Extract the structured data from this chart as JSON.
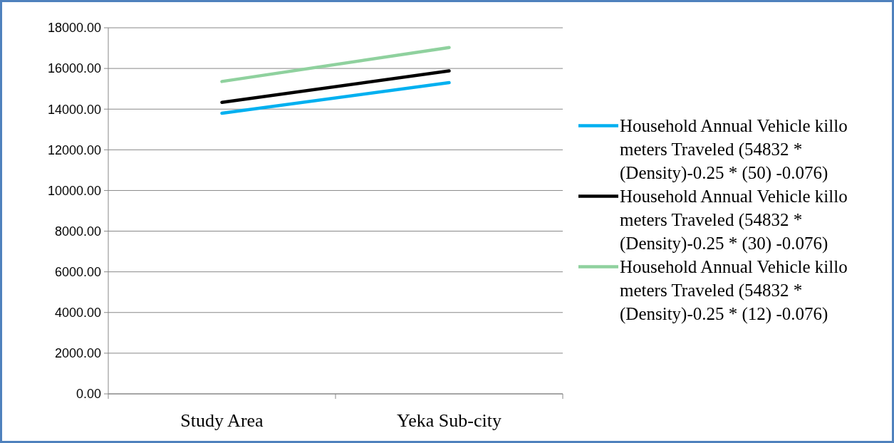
{
  "chart_data": {
    "type": "line",
    "categories": [
      "Study Area",
      "Yeka Sub-city"
    ],
    "series": [
      {
        "name": "Household Annual Vehicle killo meters Traveled (54832 * (Density)-0.25 * (50) -0.076)",
        "color": "#00b0f0",
        "values": [
          13800,
          15300
        ]
      },
      {
        "name": "Household Annual Vehicle killo meters Traveled (54832 * (Density)-0.25 * (30) -0.076)",
        "color": "#000000",
        "values": [
          14330,
          15880
        ]
      },
      {
        "name": "Household Annual Vehicle killo meters Traveled (54832 * (Density)-0.25 * (12) -0.076)",
        "color": "#8fd19e",
        "values": [
          15360,
          17030
        ]
      }
    ],
    "ylim": [
      0,
      18000
    ],
    "yticks": [
      {
        "value": 0,
        "label": "0.00"
      },
      {
        "value": 2000,
        "label": "2000.00"
      },
      {
        "value": 4000,
        "label": "4000.00"
      },
      {
        "value": 6000,
        "label": "6000.00"
      },
      {
        "value": 8000,
        "label": "8000.00"
      },
      {
        "value": 10000,
        "label": "10000.00"
      },
      {
        "value": 12000,
        "label": "12000.00"
      },
      {
        "value": 14000,
        "label": "14000.00"
      },
      {
        "value": 16000,
        "label": "16000.00"
      },
      {
        "value": 18000,
        "label": "18000.00"
      }
    ],
    "grid": "y",
    "legend": "right",
    "marker": "none",
    "line_style": "solid"
  }
}
